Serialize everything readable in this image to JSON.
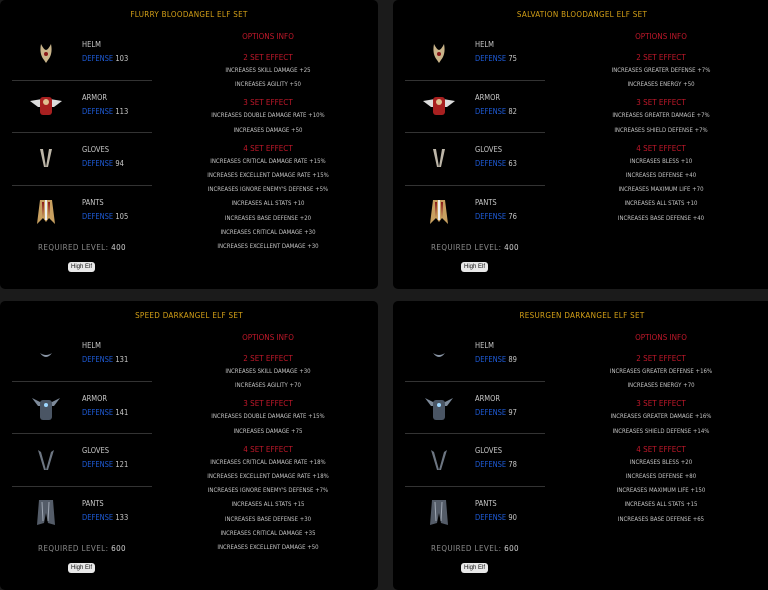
{
  "colors": {
    "title": "#d4a017",
    "options": "#c0182a",
    "defense_label": "#1e5bd8",
    "background": "#000000"
  },
  "sets": [
    {
      "title": "FLURRY BLOODANGEL ELF SET",
      "theme": "bloodangel",
      "items": [
        {
          "name": "HELM",
          "defense_label": "DEFENSE",
          "defense": "103",
          "icon": "helm-icon"
        },
        {
          "name": "ARMOR",
          "defense_label": "DEFENSE",
          "defense": "113",
          "icon": "armor-icon"
        },
        {
          "name": "GLOVES",
          "defense_label": "DEFENSE",
          "defense": "94",
          "icon": "gloves-icon"
        },
        {
          "name": "PANTS",
          "defense_label": "DEFENSE",
          "defense": "105",
          "icon": "pants-icon"
        }
      ],
      "required_label": "REQUIRED LEVEL:",
      "required_level": "400",
      "class_badge": "High Elf",
      "options_title": "OPTIONS INFO",
      "effects": [
        {
          "title": "2 SET EFFECT",
          "lines": [
            "INCREASES SKILL DAMAGE +25",
            "INCREASES AGILITY +50"
          ]
        },
        {
          "title": "3 SET EFFECT",
          "lines": [
            "INCREASES DOUBLE DAMAGE RATE +10%",
            "INCREASES DAMAGE +50"
          ]
        },
        {
          "title": "4 SET EFFECT",
          "lines": [
            "INCREASES CRITICAL DAMAGE RATE +15%",
            "INCREASES EXCELLENT DAMAGE RATE +15%",
            "INCREASES IGNORE ENEMY'S DEFENSE +5%",
            "INCREASES ALL STATS +10",
            "INCREASES BASE DEFENSE +20",
            "INCREASES CRITICAL DAMAGE +30",
            "INCREASES EXCELLENT DAMAGE +30"
          ]
        }
      ]
    },
    {
      "title": "SALVATION BLOODANGEL ELF SET",
      "theme": "bloodangel",
      "items": [
        {
          "name": "HELM",
          "defense_label": "DEFENSE",
          "defense": "75",
          "icon": "helm-icon"
        },
        {
          "name": "ARMOR",
          "defense_label": "DEFENSE",
          "defense": "82",
          "icon": "armor-icon"
        },
        {
          "name": "GLOVES",
          "defense_label": "DEFENSE",
          "defense": "63",
          "icon": "gloves-icon"
        },
        {
          "name": "PANTS",
          "defense_label": "DEFENSE",
          "defense": "76",
          "icon": "pants-icon"
        }
      ],
      "required_label": "REQUIRED LEVEL:",
      "required_level": "400",
      "class_badge": "High Elf",
      "options_title": "OPTIONS INFO",
      "effects": [
        {
          "title": "2 SET EFFECT",
          "lines": [
            "INCREASES GREATER DEFENSE +7%",
            "INCREASES ENERGY +50"
          ]
        },
        {
          "title": "3 SET EFFECT",
          "lines": [
            "INCREASES GREATER DAMAGE +7%",
            "INCREASES SHIELD DEFENSE +7%"
          ]
        },
        {
          "title": "4 SET EFFECT",
          "lines": [
            "INCREASES BLESS +10",
            "INCREASES DEFENSE +40",
            "INCREASES MAXIMUM LIFE +70",
            "INCREASES ALL STATS +10",
            "INCREASES BASE DEFENSE +40"
          ]
        }
      ]
    },
    {
      "title": "SPEED DARKANGEL ELF SET",
      "theme": "darkangel",
      "items": [
        {
          "name": "HELM",
          "defense_label": "DEFENSE",
          "defense": "131",
          "icon": "helm-icon"
        },
        {
          "name": "ARMOR",
          "defense_label": "DEFENSE",
          "defense": "141",
          "icon": "armor-icon"
        },
        {
          "name": "GLOVES",
          "defense_label": "DEFENSE",
          "defense": "121",
          "icon": "gloves-icon"
        },
        {
          "name": "PANTS",
          "defense_label": "DEFENSE",
          "defense": "133",
          "icon": "pants-icon"
        }
      ],
      "required_label": "REQUIRED LEVEL:",
      "required_level": "600",
      "class_badge": "High Elf",
      "options_title": "OPTIONS INFO",
      "effects": [
        {
          "title": "2 SET EFFECT",
          "lines": [
            "INCREASES SKILL DAMAGE +30",
            "INCREASES AGILITY +70"
          ]
        },
        {
          "title": "3 SET EFFECT",
          "lines": [
            "INCREASES DOUBLE DAMAGE RATE +15%",
            "INCREASES DAMAGE +75"
          ]
        },
        {
          "title": "4 SET EFFECT",
          "lines": [
            "INCREASES CRITICAL DAMAGE RATE +18%",
            "INCREASES EXCELLENT DAMAGE RATE +18%",
            "INCREASES IGNORE ENEMY'S DEFENSE +7%",
            "INCREASES ALL STATS +15",
            "INCREASES BASE DEFENSE +30",
            "INCREASES CRITICAL DAMAGE +35",
            "INCREASES EXCELLENT DAMAGE +50"
          ]
        }
      ]
    },
    {
      "title": "RESURGEN DARKANGEL ELF SET",
      "theme": "darkangel",
      "items": [
        {
          "name": "HELM",
          "defense_label": "DEFENSE",
          "defense": "89",
          "icon": "helm-icon"
        },
        {
          "name": "ARMOR",
          "defense_label": "DEFENSE",
          "defense": "97",
          "icon": "armor-icon"
        },
        {
          "name": "GLOVES",
          "defense_label": "DEFENSE",
          "defense": "78",
          "icon": "gloves-icon"
        },
        {
          "name": "PANTS",
          "defense_label": "DEFENSE",
          "defense": "90",
          "icon": "pants-icon"
        }
      ],
      "required_label": "REQUIRED LEVEL:",
      "required_level": "600",
      "class_badge": "High Elf",
      "options_title": "OPTIONS INFO",
      "effects": [
        {
          "title": "2 SET EFFECT",
          "lines": [
            "INCREASES GREATER DEFENSE +16%",
            "INCREASES ENERGY +70"
          ]
        },
        {
          "title": "3 SET EFFECT",
          "lines": [
            "INCREASES GREATER DAMAGE +16%",
            "INCREASES SHIELD DEFENSE +14%"
          ]
        },
        {
          "title": "4 SET EFFECT",
          "lines": [
            "INCREASES BLESS +20",
            "INCREASES DEFENSE +80",
            "INCREASES MAXIMUM LIFE +150",
            "INCREASES ALL STATS +15",
            "INCREASES BASE DEFENSE +65"
          ]
        }
      ]
    }
  ]
}
